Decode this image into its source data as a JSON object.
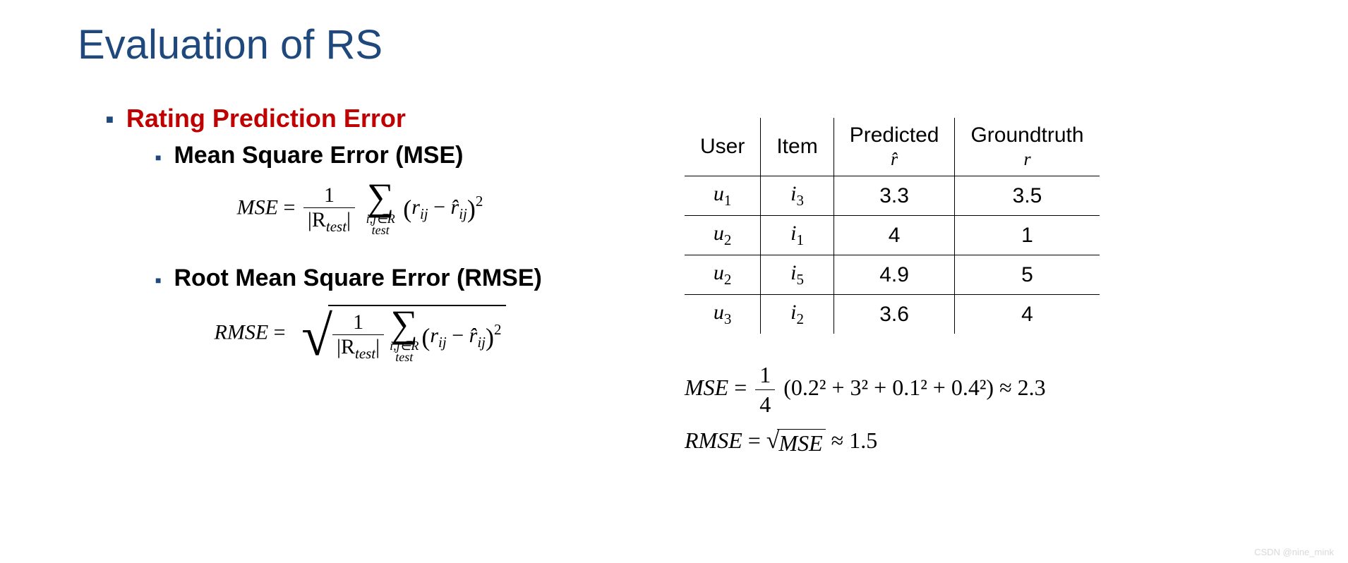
{
  "title": "Evaluation of RS",
  "section": {
    "heading": "Rating Prediction Error",
    "items": [
      {
        "label": "Mean Square Error (MSE)"
      },
      {
        "label": "Root Mean Square Error (RMSE)"
      }
    ]
  },
  "formulas": {
    "mse": {
      "lhs": "MSE",
      "frac_num": "1",
      "frac_den_left": "|R",
      "frac_den_sub": "test",
      "frac_den_right": "|",
      "sum_sub": "i,j∈R",
      "sum_sub2": "test",
      "term_open": "(",
      "term_r": "r",
      "term_ij": "ij",
      "term_minus": " − ",
      "term_rhat": "r̂",
      "term_close": ")",
      "term_pow": "2"
    },
    "rmse": {
      "lhs": "RMSE"
    }
  },
  "table": {
    "columns": [
      "User",
      "Item",
      "Predicted",
      "Groundtruth"
    ],
    "col_sub": [
      "",
      "",
      "r̂",
      "r"
    ],
    "rows": [
      {
        "user": "u",
        "user_sub": "1",
        "item": "i",
        "item_sub": "3",
        "pred": "3.3",
        "gt": "3.5"
      },
      {
        "user": "u",
        "user_sub": "2",
        "item": "i",
        "item_sub": "1",
        "pred": "4",
        "gt": "1"
      },
      {
        "user": "u",
        "user_sub": "2",
        "item": "i",
        "item_sub": "5",
        "pred": "4.9",
        "gt": "5"
      },
      {
        "user": "u",
        "user_sub": "3",
        "item": "i",
        "item_sub": "2",
        "pred": "3.6",
        "gt": "4"
      }
    ]
  },
  "calc": {
    "mse_lhs": "MSE",
    "mse_frac_num": "1",
    "mse_frac_den": "4",
    "mse_terms": "(0.2² + 3² + 0.1² + 0.4²)",
    "mse_approx": " ≈ 2.3",
    "rmse_lhs": "RMSE",
    "rmse_inside": "MSE",
    "rmse_approx": " ≈ 1.5"
  },
  "colors": {
    "title": "#1f497d",
    "bullet_square": "#1f497d",
    "heading_red": "#c00000",
    "text": "#000000",
    "background": "#ffffff",
    "watermark": "#d9d9d9"
  },
  "watermark": "CSDN @nine_mink"
}
